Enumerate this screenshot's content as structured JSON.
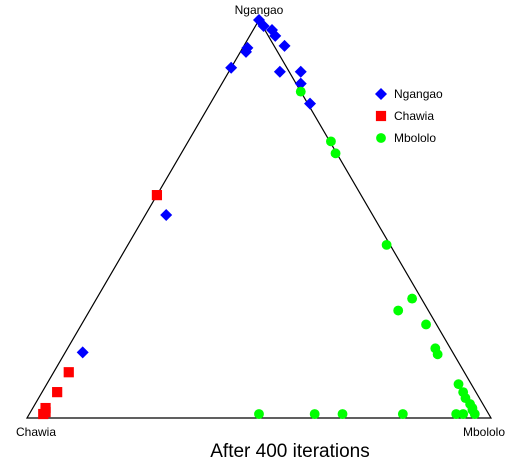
{
  "chart_data": {
    "type": "scatter",
    "subtype": "ternary",
    "title": "After 400 iterations",
    "vertices": {
      "top": "Ngangao",
      "left": "Chawia",
      "right": "Mbololo"
    },
    "legend_position": "top-right",
    "series": [
      {
        "name": "Ngangao",
        "marker": "diamond",
        "color": "#0000ff",
        "points": [
          {
            "a": 1.0,
            "c": 0.0
          },
          {
            "a": 0.985,
            "c": 0.01
          },
          {
            "a": 0.975,
            "c": 0.028
          },
          {
            "a": 0.96,
            "c": 0.035
          },
          {
            "a": 0.935,
            "c": 0.055
          },
          {
            "a": 0.93,
            "c": -0.025
          },
          {
            "a": 0.92,
            "c": -0.028
          },
          {
            "a": 0.88,
            "c": -0.06
          },
          {
            "a": 0.87,
            "c": 0.045
          },
          {
            "a": 0.87,
            "c": 0.09
          },
          {
            "a": 0.84,
            "c": 0.09
          },
          {
            "a": 0.79,
            "c": 0.11
          },
          {
            "a": 0.51,
            "c": -0.2
          },
          {
            "a": 0.165,
            "c": -0.38
          }
        ]
      },
      {
        "name": "Chawia",
        "marker": "square",
        "color": "#ff0000",
        "points": [
          {
            "a": 0.56,
            "c": -0.22
          },
          {
            "a": 0.115,
            "c": -0.41
          },
          {
            "a": 0.065,
            "c": -0.435
          },
          {
            "a": 0.025,
            "c": -0.46
          },
          {
            "a": 0.015,
            "c": -0.46
          },
          {
            "a": 0.01,
            "c": -0.465
          }
        ]
      },
      {
        "name": "Mbololo",
        "marker": "circle",
        "color": "#00ff00",
        "points": [
          {
            "a": 0.82,
            "c": 0.09
          },
          {
            "a": 0.695,
            "c": 0.155
          },
          {
            "a": 0.665,
            "c": 0.165
          },
          {
            "a": 0.435,
            "c": 0.275
          },
          {
            "a": 0.3,
            "c": 0.33
          },
          {
            "a": 0.27,
            "c": 0.3
          },
          {
            "a": 0.235,
            "c": 0.36
          },
          {
            "a": 0.175,
            "c": 0.38
          },
          {
            "a": 0.16,
            "c": 0.385
          },
          {
            "a": 0.085,
            "c": 0.43
          },
          {
            "a": 0.065,
            "c": 0.44
          },
          {
            "a": 0.05,
            "c": 0.445
          },
          {
            "a": 0.035,
            "c": 0.455
          },
          {
            "a": 0.025,
            "c": 0.46
          },
          {
            "a": 0.02,
            "c": 0.46
          },
          {
            "a": 0.01,
            "c": 0.465
          },
          {
            "a": 0.01,
            "c": 0.44
          },
          {
            "a": 0.01,
            "c": 0.425
          },
          {
            "a": 0.01,
            "c": 0.31
          },
          {
            "a": 0.01,
            "c": 0.18
          },
          {
            "a": 0.01,
            "c": 0.12
          },
          {
            "a": 0.01,
            "c": 0.0
          }
        ]
      }
    ]
  }
}
